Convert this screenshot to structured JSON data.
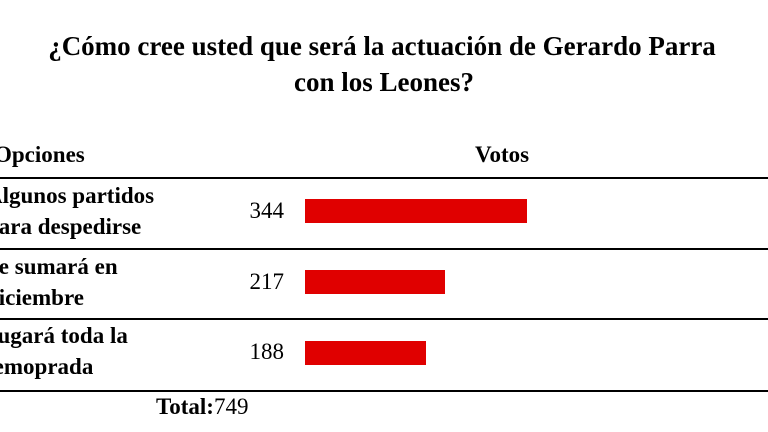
{
  "poll": {
    "question_line1": "¿Cómo cree usted que será la actuación de Gerardo Parra",
    "question_line2": "con los Leones?",
    "header_options": "Opciones",
    "header_votes": "Votos",
    "bar_color": "#e00000",
    "options": [
      {
        "label_line1": "Algunos partidos",
        "label_line2": "para despedirse",
        "votes": "344"
      },
      {
        "label_line1": "Se sumará en",
        "label_line2": "diciembre",
        "votes": "217"
      },
      {
        "label_line1": "Jugará toda la",
        "label_line2": "temoprada",
        "votes": "188"
      }
    ],
    "total_label": "Total:",
    "total_value": "749"
  }
}
